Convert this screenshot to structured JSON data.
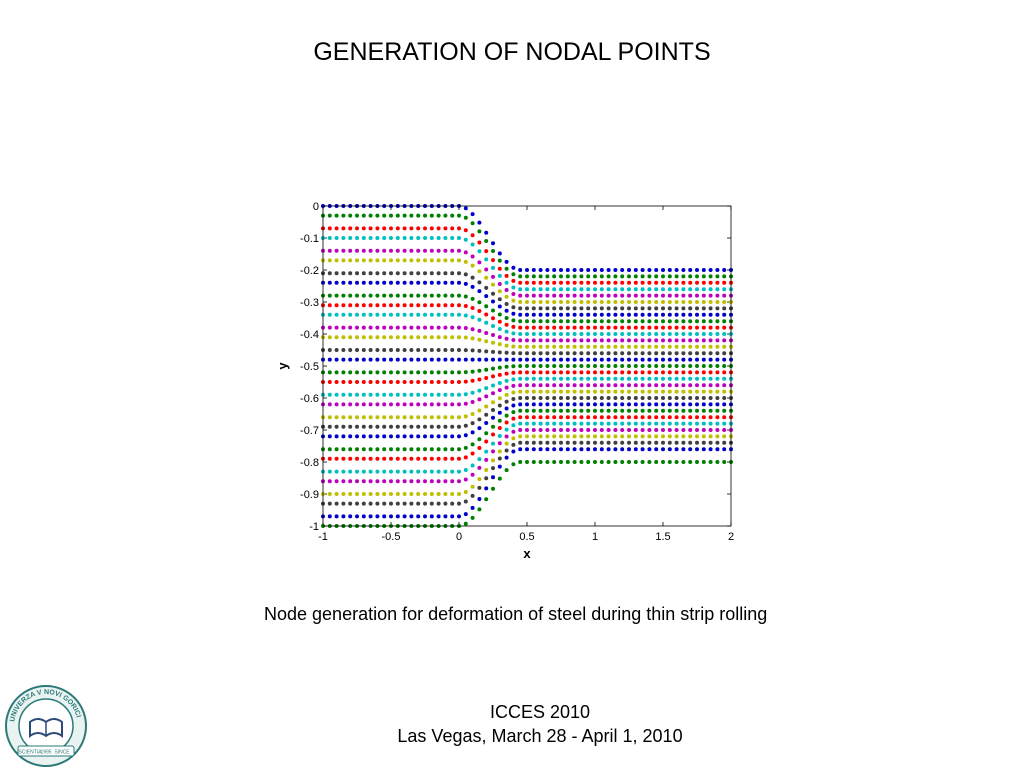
{
  "slide": {
    "title": "GENERATION OF NODAL POINTS",
    "caption": "Node generation for deformation of steel during thin strip rolling",
    "footer_line1": "ICCES 2010",
    "footer_line2": "Las Vegas, March 28 - April 1, 2010"
  },
  "logo": {
    "icon": "university-seal-icon",
    "ring_text": "UNIVERZA V NOVI GORICI",
    "ribbon_left": "SCIENTIA",
    "ribbon_right": "SINCE",
    "year": "1995",
    "color": "#2b7a78"
  },
  "chart_data": {
    "type": "scatter",
    "title": "",
    "xlabel": "x",
    "ylabel": "y",
    "xlim": [
      -1,
      2
    ],
    "ylim": [
      -1,
      0
    ],
    "xticks": [
      -1,
      -0.5,
      0,
      0.5,
      1,
      1.5,
      2
    ],
    "yticks": [
      0,
      -0.1,
      -0.2,
      -0.3,
      -0.4,
      -0.5,
      -0.6,
      -0.7,
      -0.8,
      -0.9,
      -1
    ],
    "grid": false,
    "legend": "none",
    "x_points": [
      -1,
      -0.95,
      -0.9,
      -0.85,
      -0.8,
      -0.75,
      -0.7,
      -0.65,
      -0.6,
      -0.55,
      -0.5,
      -0.45,
      -0.4,
      -0.35,
      -0.3,
      -0.25,
      -0.2,
      -0.15,
      -0.1,
      -0.05,
      0,
      0.05,
      0.1,
      0.15,
      0.2,
      0.25,
      0.3,
      0.35,
      0.4,
      0.45,
      0.5,
      0.55,
      0.6,
      0.65,
      0.7,
      0.75,
      0.8,
      0.85,
      0.9,
      0.95,
      1,
      1.05,
      1.1,
      1.15,
      1.2,
      1.25,
      1.3,
      1.35,
      1.4,
      1.45,
      1.5,
      1.55,
      1.6,
      1.65,
      1.7,
      1.75,
      1.8,
      1.85,
      1.9,
      1.95,
      2
    ],
    "series": [
      {
        "color": "#0000cc",
        "y_start": 0.0,
        "y_end": -0.2
      },
      {
        "color": "#008000",
        "y_start": -0.03,
        "y_end": -0.22
      },
      {
        "color": "#ff0000",
        "y_start": -0.07,
        "y_end": -0.24
      },
      {
        "color": "#00bfbf",
        "y_start": -0.1,
        "y_end": -0.26
      },
      {
        "color": "#bf00bf",
        "y_start": -0.14,
        "y_end": -0.28
      },
      {
        "color": "#bfbf00",
        "y_start": -0.17,
        "y_end": -0.3
      },
      {
        "color": "#404040",
        "y_start": -0.21,
        "y_end": -0.32
      },
      {
        "color": "#0000cc",
        "y_start": -0.24,
        "y_end": -0.34
      },
      {
        "color": "#008000",
        "y_start": -0.28,
        "y_end": -0.36
      },
      {
        "color": "#ff0000",
        "y_start": -0.31,
        "y_end": -0.38
      },
      {
        "color": "#00bfbf",
        "y_start": -0.34,
        "y_end": -0.4
      },
      {
        "color": "#bf00bf",
        "y_start": -0.38,
        "y_end": -0.42
      },
      {
        "color": "#bfbf00",
        "y_start": -0.41,
        "y_end": -0.44
      },
      {
        "color": "#404040",
        "y_start": -0.45,
        "y_end": -0.46
      },
      {
        "color": "#0000cc",
        "y_start": -0.48,
        "y_end": -0.48
      },
      {
        "color": "#008000",
        "y_start": -0.52,
        "y_end": -0.5
      },
      {
        "color": "#ff0000",
        "y_start": -0.55,
        "y_end": -0.52
      },
      {
        "color": "#00bfbf",
        "y_start": -0.59,
        "y_end": -0.54
      },
      {
        "color": "#bf00bf",
        "y_start": -0.62,
        "y_end": -0.56
      },
      {
        "color": "#bfbf00",
        "y_start": -0.66,
        "y_end": -0.58
      },
      {
        "color": "#404040",
        "y_start": -0.69,
        "y_end": -0.6
      },
      {
        "color": "#0000cc",
        "y_start": -0.72,
        "y_end": -0.62
      },
      {
        "color": "#008000",
        "y_start": -0.76,
        "y_end": -0.64
      },
      {
        "color": "#ff0000",
        "y_start": -0.79,
        "y_end": -0.66
      },
      {
        "color": "#00bfbf",
        "y_start": -0.83,
        "y_end": -0.68
      },
      {
        "color": "#bf00bf",
        "y_start": -0.86,
        "y_end": -0.7
      },
      {
        "color": "#bfbf00",
        "y_start": -0.9,
        "y_end": -0.72
      },
      {
        "color": "#404040",
        "y_start": -0.93,
        "y_end": -0.74
      },
      {
        "color": "#0000cc",
        "y_start": -0.97,
        "y_end": -0.76
      },
      {
        "color": "#008000",
        "y_start": -1.0,
        "y_end": -0.8
      }
    ],
    "transition_x": [
      0,
      0.45
    ]
  }
}
